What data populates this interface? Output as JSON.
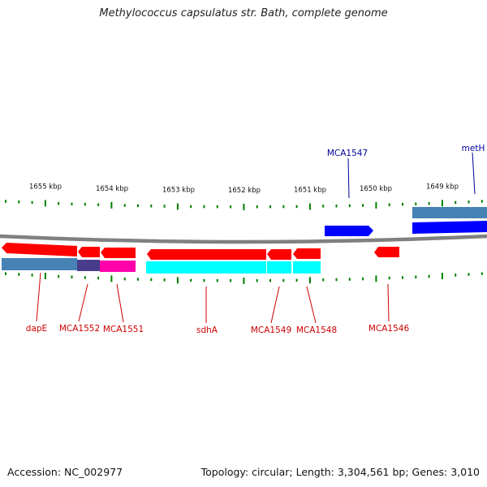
{
  "title": "Methylococcus capsulatus str. Bath, complete genome",
  "footer": {
    "accession": "Accession: NC_002977",
    "summary": "Topology: circular; Length: 3,304,561 bp; Genes: 3,010"
  },
  "colors": {
    "gene_minus": "#ff0000",
    "gene_plus": "#0000ff",
    "cds_plus": "#4682b4",
    "cds_minus": "#00ffff",
    "cds_overlap_dark": "#483d8b",
    "cds_overlap_pink": "#ff00aa",
    "tick": "#008000",
    "backbone": "#808080",
    "label_minus": "#cc0000",
    "label_plus": "#000099"
  },
  "kbp_labels": [
    "1655 kbp",
    "1654 kbp",
    "1653 kbp",
    "1652 kbp",
    "1651 kbp",
    "1650 kbp",
    "1649 kbp"
  ],
  "gene_labels_minus": [
    "dapE",
    "MCA1552",
    "MCA1551",
    "sdhA",
    "MCA1549",
    "MCA1548",
    "MCA1546"
  ],
  "gene_labels_plus": [
    "MCA1547",
    "metH"
  ]
}
